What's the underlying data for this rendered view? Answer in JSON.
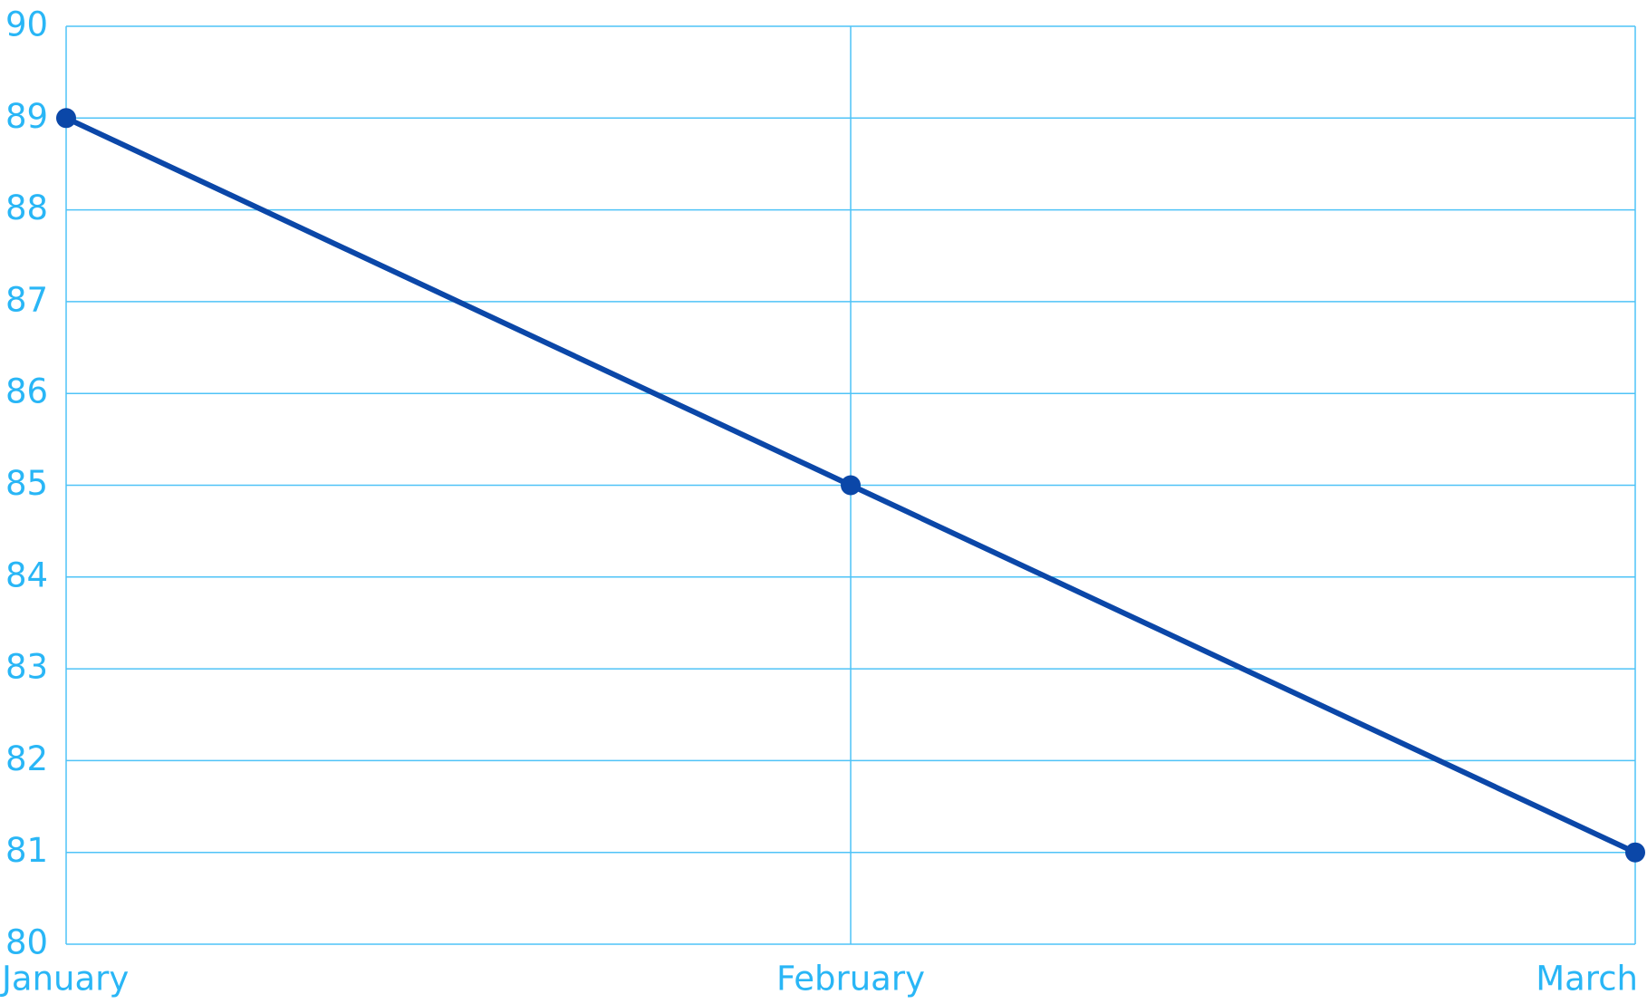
{
  "chart_data": {
    "type": "line",
    "categories": [
      "January",
      "February",
      "March"
    ],
    "series": [
      {
        "color": "#0b47a8",
        "values": [
          89,
          85,
          81
        ]
      }
    ],
    "ylim": [
      80,
      90
    ],
    "yticks": [
      80,
      81,
      82,
      83,
      84,
      85,
      86,
      87,
      88,
      89,
      90
    ],
    "grid": true,
    "grid_color": "#4fc3f7",
    "label_color": "#29b6f6"
  }
}
